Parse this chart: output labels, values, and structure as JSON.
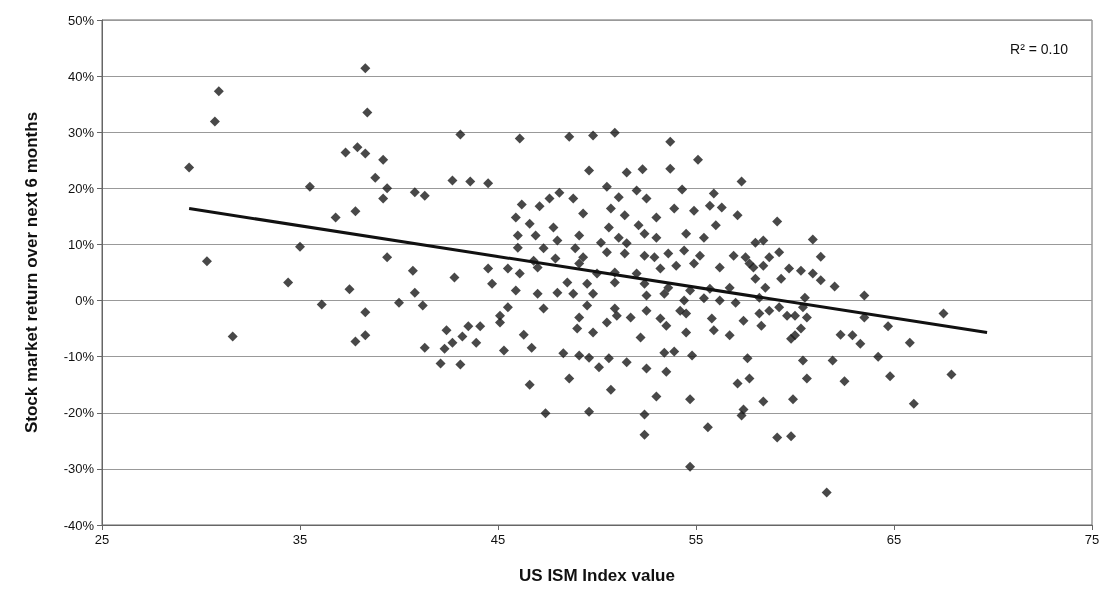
{
  "chart_data": {
    "type": "scatter",
    "xlabel": "US ISM Index value",
    "ylabel": "Stock market return over next 6 months",
    "xlim": [
      25,
      75
    ],
    "xticks": [
      25,
      35,
      45,
      55,
      65,
      75
    ],
    "ylim": [
      -40,
      50
    ],
    "yticks": [
      {
        "value": -40,
        "label": "-40%"
      },
      {
        "value": -30,
        "label": "-30%"
      },
      {
        "value": -20,
        "label": "-20%"
      },
      {
        "value": -10,
        "label": "-10%"
      },
      {
        "value": 0,
        "label": "0%"
      },
      {
        "value": 10,
        "label": "10%"
      },
      {
        "value": 20,
        "label": "20%"
      },
      {
        "value": 30,
        "label": "30%"
      },
      {
        "value": 40,
        "label": "40%"
      },
      {
        "value": 50,
        "label": "50%"
      }
    ],
    "grid": "y",
    "marker": "diamond",
    "annotations": [
      "R² = 0.10"
    ],
    "series": [
      {
        "color": "#1a1a1a",
        "x": [
          38.3,
          30.9,
          30.7,
          38.4,
          29.4,
          37.9,
          37.3,
          38.3,
          39.2,
          38.8,
          39.4,
          39.2,
          40.8,
          41.3,
          35.5,
          36.8,
          37.8,
          35.0,
          30.3,
          39.4,
          40.7,
          40.8,
          34.4,
          37.5,
          36.1,
          40.0,
          41.2,
          38.3,
          31.6,
          37.8,
          38.3,
          41.3,
          42.3,
          42.1,
          42.4,
          43.1,
          46.1,
          48.6,
          49.8,
          50.9,
          53.7,
          55.1,
          42.7,
          43.6,
          44.5,
          49.6,
          51.5,
          52.3,
          53.7,
          57.3,
          50.5,
          54.3,
          55.9,
          48.1,
          47.6,
          48.8,
          46.2,
          47.1,
          49.3,
          51.1,
          52.0,
          52.5,
          50.7,
          51.4,
          53.9,
          54.9,
          55.7,
          56.3,
          57.1,
          45.9,
          53.0,
          46.6,
          47.8,
          52.1,
          56.0,
          50.6,
          46.0,
          46.9,
          48.0,
          49.1,
          51.1,
          52.4,
          53.0,
          54.5,
          55.4,
          46.0,
          47.3,
          48.9,
          50.2,
          51.5,
          58.0,
          58.4,
          46.8,
          47.9,
          49.3,
          50.5,
          51.4,
          52.4,
          52.9,
          53.6,
          54.4,
          55.2,
          56.9,
          57.5,
          44.5,
          45.5,
          47.0,
          49.1,
          50.0,
          50.9,
          52.0,
          53.2,
          54.0,
          54.9,
          56.2,
          57.9,
          42.8,
          44.7,
          46.1,
          48.5,
          49.5,
          50.9,
          52.4,
          53.6,
          54.7,
          55.7,
          56.7,
          45.9,
          47.0,
          48.0,
          48.8,
          49.8,
          52.5,
          53.4,
          54.4,
          55.4,
          56.2,
          57.0,
          58.2,
          45.5,
          47.3,
          49.5,
          50.9,
          52.5,
          54.2,
          43.5,
          44.1,
          42.7,
          43.2,
          43.9,
          43.1,
          45.1,
          45.1,
          46.3,
          45.3,
          46.7,
          46.6,
          47.4,
          48.3,
          48.6,
          49.1,
          49.0,
          49.1,
          49.6,
          50.1,
          50.6,
          51.5,
          49.8,
          50.5,
          51.0,
          51.7,
          49.6,
          50.7,
          52.2,
          52.5,
          52.4,
          52.4,
          53.0,
          53.2,
          53.5,
          53.4,
          53.9,
          53.5,
          54.5,
          54.8,
          54.7,
          54.7,
          54.5,
          55.8,
          55.9,
          56.7,
          55.6,
          57.4,
          57.6,
          57.1,
          57.7,
          57.4,
          57.3,
          58.3,
          58.4,
          59.1,
          60.9,
          59.2,
          61.3,
          58.7,
          57.7,
          58.4,
          59.7,
          60.3,
          60.9,
          61.3,
          59.3,
          58.0,
          58.5,
          62.0,
          63.5,
          60.5,
          60.4,
          59.2,
          58.2,
          58.7,
          59.6,
          60.0,
          60.6,
          63.5,
          67.5,
          60.3,
          60.0,
          59.8,
          62.3,
          62.9,
          63.3,
          64.7,
          65.8,
          64.2,
          60.4,
          61.9,
          60.6,
          62.5,
          64.8,
          67.9,
          59.9,
          66.0,
          59.1,
          59.8,
          61.6
        ],
        "values": [
          41.4,
          37.3,
          31.9,
          33.5,
          23.7,
          27.3,
          26.4,
          26.2,
          25.1,
          21.9,
          20.0,
          18.2,
          19.3,
          18.7,
          20.3,
          14.8,
          15.9,
          9.6,
          7.0,
          7.7,
          5.3,
          1.4,
          3.2,
          2.0,
          -0.7,
          -0.4,
          -0.9,
          -2.1,
          -6.4,
          -7.3,
          -6.2,
          -8.4,
          -8.6,
          -11.2,
          -5.3,
          29.6,
          28.9,
          29.2,
          29.4,
          29.9,
          28.3,
          25.1,
          21.4,
          21.2,
          20.9,
          23.2,
          22.8,
          23.4,
          23.5,
          21.2,
          20.3,
          19.8,
          19.1,
          19.2,
          18.2,
          18.2,
          17.1,
          16.8,
          15.5,
          18.4,
          19.6,
          18.2,
          16.4,
          15.2,
          16.4,
          16.0,
          16.9,
          16.6,
          15.2,
          14.8,
          14.8,
          13.7,
          13.0,
          13.4,
          13.4,
          13.0,
          11.6,
          11.6,
          10.7,
          11.6,
          11.2,
          11.9,
          11.2,
          11.9,
          11.2,
          9.4,
          9.3,
          9.3,
          10.3,
          10.2,
          10.3,
          10.7,
          7.1,
          7.5,
          7.7,
          8.6,
          8.4,
          8.0,
          7.7,
          8.4,
          8.9,
          8.0,
          8.0,
          7.7,
          5.7,
          5.7,
          5.9,
          6.6,
          4.8,
          5.0,
          4.8,
          5.7,
          6.2,
          6.6,
          5.9,
          5.9,
          4.1,
          3.0,
          4.8,
          3.2,
          3.0,
          3.2,
          3.0,
          2.3,
          1.8,
          2.1,
          2.3,
          1.8,
          1.2,
          1.4,
          1.2,
          1.2,
          0.9,
          1.2,
          0.0,
          0.4,
          0.0,
          -0.4,
          0.5,
          -1.2,
          -1.4,
          -0.9,
          -1.4,
          -1.8,
          -1.8,
          -4.6,
          -4.6,
          -7.5,
          -6.4,
          -7.5,
          -11.4,
          -2.7,
          -3.9,
          -6.1,
          -8.9,
          -8.4,
          -15.0,
          -20.1,
          -9.4,
          -13.9,
          -3.0,
          -5.0,
          -9.8,
          -10.2,
          -11.9,
          -10.3,
          -11.0,
          -5.7,
          -3.9,
          -2.7,
          -3.0,
          -19.8,
          -15.9,
          -6.6,
          -12.1,
          -20.3,
          -23.9,
          -17.1,
          -3.2,
          -4.5,
          -9.3,
          -9.1,
          -12.7,
          -5.7,
          -9.8,
          -17.6,
          -29.6,
          -2.3,
          -3.2,
          -5.3,
          -6.2,
          -22.6,
          -3.6,
          -10.3,
          -14.8,
          -13.9,
          -19.4,
          -20.5,
          -4.5,
          -18.0,
          14.1,
          10.9,
          8.6,
          7.8,
          7.7,
          6.6,
          6.2,
          5.7,
          5.3,
          4.8,
          3.6,
          3.9,
          3.9,
          2.3,
          2.5,
          0.9,
          0.5,
          -1.2,
          -1.2,
          -2.3,
          -1.8,
          -2.7,
          -2.7,
          -3.0,
          -3.0,
          -2.3,
          -5.0,
          -6.2,
          -6.8,
          -6.1,
          -6.2,
          -7.7,
          -4.6,
          -7.5,
          -10.0,
          -10.7,
          -10.7,
          -13.9,
          -14.4,
          -13.5,
          -13.2,
          -17.6,
          -18.4,
          -24.4,
          -24.2,
          -34.2
        ]
      },
      {
        "type": "line",
        "color": "#111111",
        "marker": "none",
        "line_style": "solid",
        "x": [
          29.4,
          69.7
        ],
        "values": [
          16.4,
          -5.7
        ]
      }
    ]
  }
}
